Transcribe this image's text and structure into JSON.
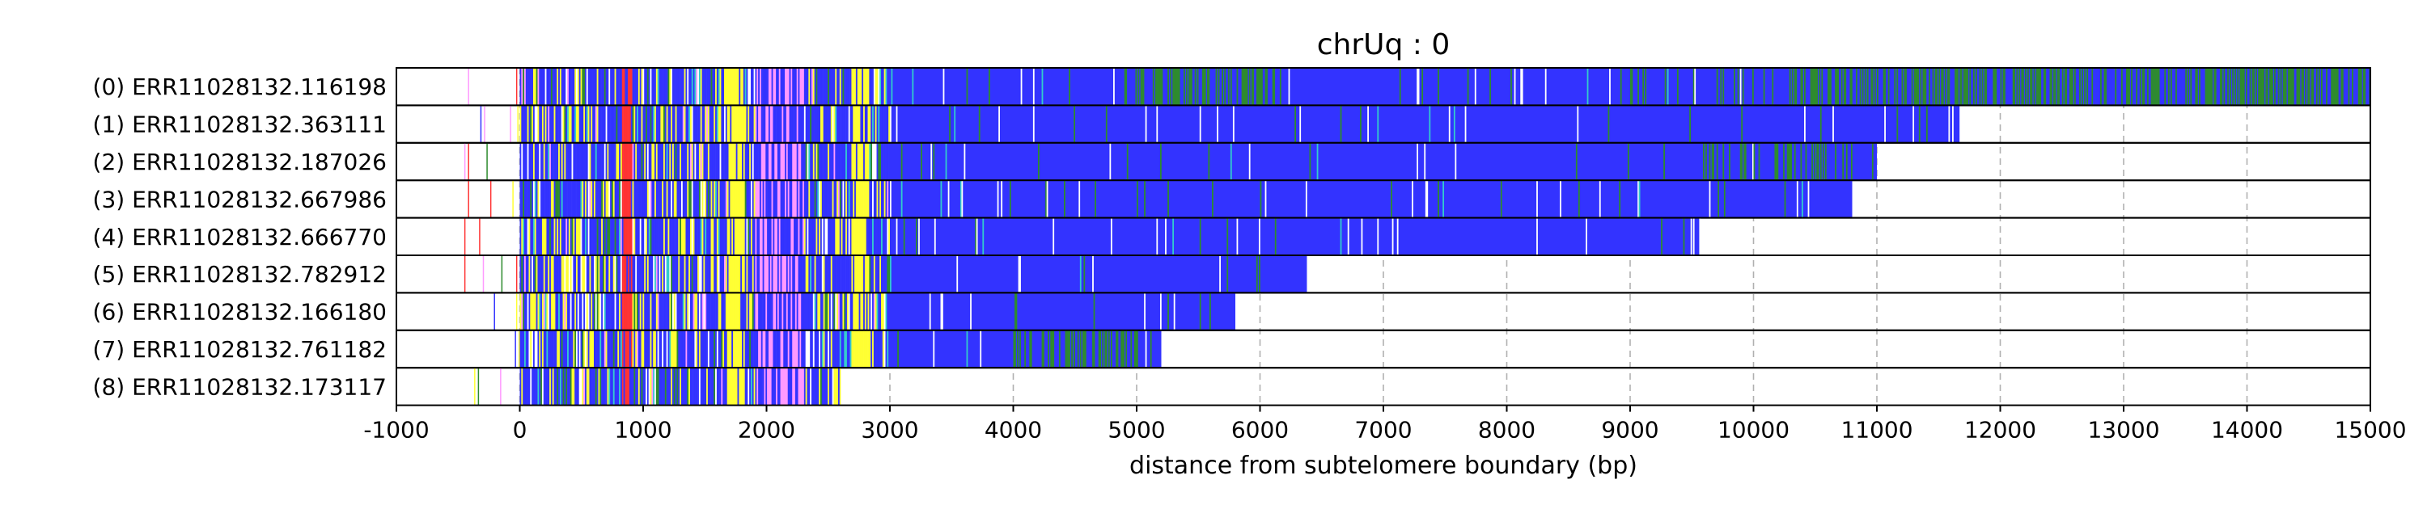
{
  "chart_data": {
    "type": "bar",
    "title": "chrUq : 0",
    "xlabel": "distance from subtelomere boundary (bp)",
    "ylabel": "",
    "xlim": [
      -1000,
      15000
    ],
    "xticks": [
      -1000,
      0,
      1000,
      2000,
      3000,
      4000,
      5000,
      6000,
      7000,
      8000,
      9000,
      10000,
      11000,
      12000,
      13000,
      14000,
      15000
    ],
    "grid": "vertical dashed",
    "reads": [
      {
        "label": "(0) ERR11028132.116198",
        "start": -600,
        "end": 15000
      },
      {
        "label": "(1) ERR11028132.363111",
        "start": -500,
        "end": 11670
      },
      {
        "label": "(2) ERR11028132.187026",
        "start": -450,
        "end": 11000
      },
      {
        "label": "(3) ERR11028132.667986",
        "start": -450,
        "end": 10800
      },
      {
        "label": "(4) ERR11028132.666770",
        "start": -450,
        "end": 9570
      },
      {
        "label": "(5) ERR11028132.782912",
        "start": -450,
        "end": 6380
      },
      {
        "label": "(6) ERR11028132.166180",
        "start": -450,
        "end": 5800
      },
      {
        "label": "(7) ERR11028132.761182",
        "start": -550,
        "end": 5200
      },
      {
        "label": "(8) ERR11028132.173117",
        "start": -550,
        "end": 2600
      }
    ],
    "repeat_colors": {
      "main": "#3333ff",
      "green": "#2e8b2e",
      "yellow": "#ffff33",
      "red": "#ff3333",
      "pink": "#ff99ff",
      "cyan": "#33cccc",
      "white": "#ffffff"
    },
    "regions": [
      {
        "from": 0,
        "to": 3000,
        "pattern": "mixed: yellow bands at ~1700-1800 and ~2700-2800, red at ~850-900, pink at ~1900-2300"
      },
      {
        "from": 3000,
        "to": 15000,
        "pattern": "mostly blue; green-rich region in read 0 at 4900-6200 and 10300-15000"
      }
    ]
  }
}
